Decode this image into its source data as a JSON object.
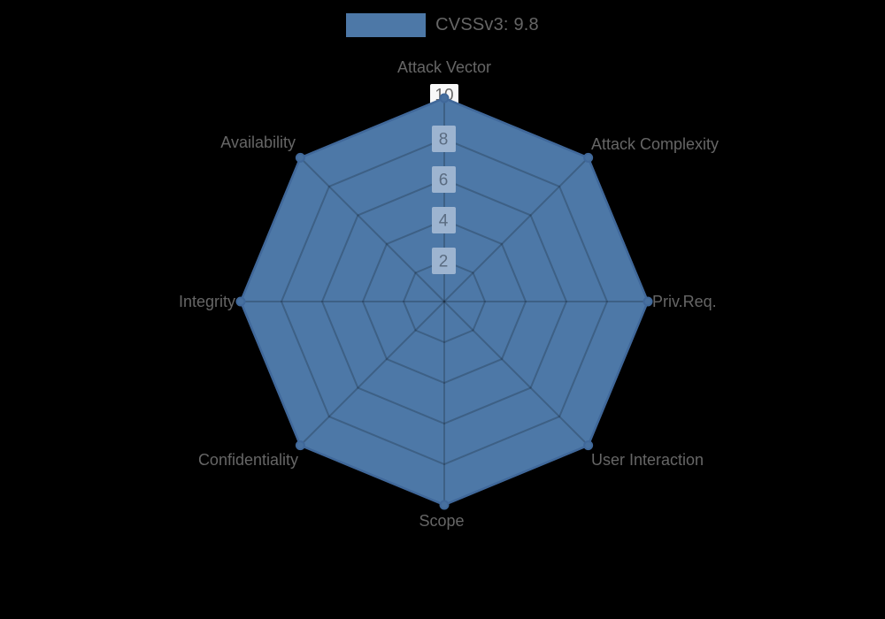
{
  "legend": {
    "label": "CVSSv3: 9.8",
    "swatch_color": "#4d78a7"
  },
  "colors": {
    "background": "#000000",
    "fill": "#4d78a7",
    "edge": "#40689a",
    "marker_fill": "#47709f",
    "grid": "rgba(0,0,0,0.2)",
    "tick_box": "#9db4d0",
    "tick_box_top": "#f8f8f8",
    "tick_text": "#5a6b80",
    "tick_text_top": "#666666",
    "label_text": "#666666"
  },
  "chart_data": {
    "type": "radar",
    "categories": [
      "Attack Vector",
      "Attack Complexity",
      "Priv.Req.",
      "User Interaction",
      "Scope",
      "Confidentiality",
      "Integrity",
      "Availability"
    ],
    "series": [
      {
        "name": "CVSSv3: 9.8",
        "values": [
          10,
          10,
          10,
          10,
          10,
          10,
          10,
          10
        ]
      }
    ],
    "ticks": [
      "2",
      "4",
      "6",
      "8",
      "10"
    ],
    "rmin": 0,
    "rmax": 10,
    "grid": true,
    "grid_shape": "polygon",
    "legend_position": "top-center"
  }
}
